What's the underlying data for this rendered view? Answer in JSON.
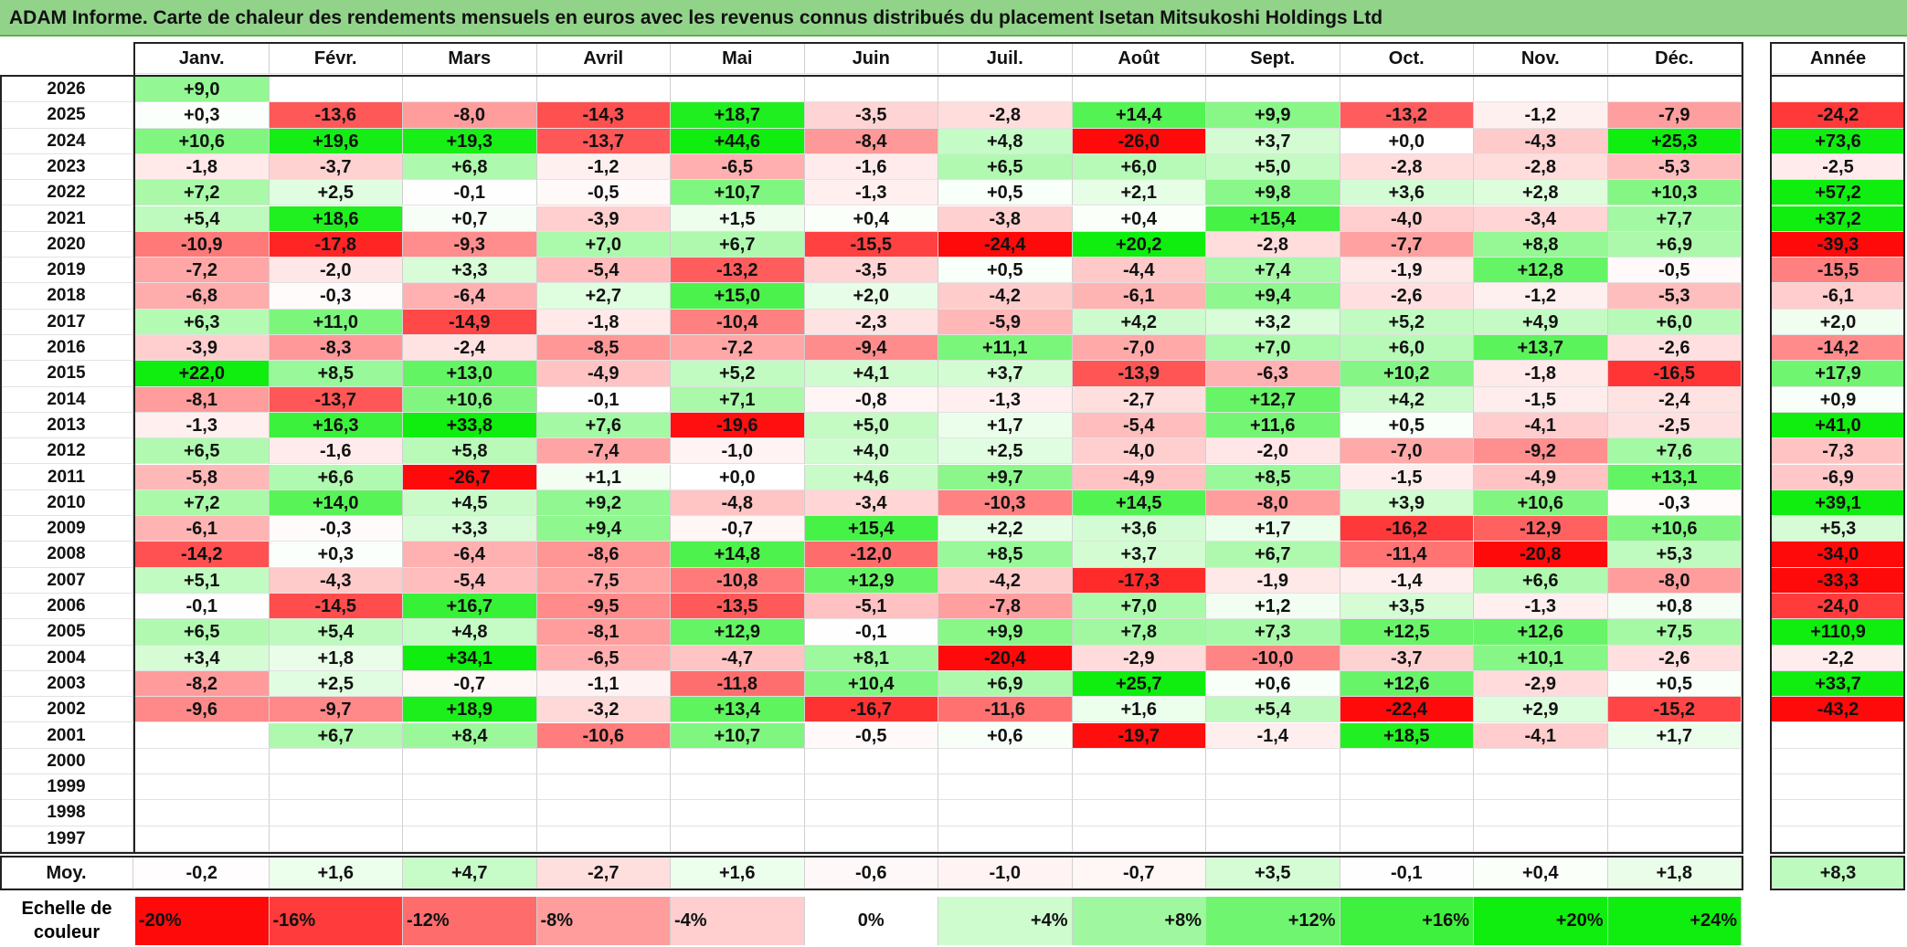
{
  "title": "ADAM Informe. Carte de chaleur des rendements mensuels en euros avec les revenus connus distribués du placement Isetan Mitsukoshi Holdings Ltd",
  "chart_data": {
    "type": "heatmap",
    "columns": [
      "Janv.",
      "Févr.",
      "Mars",
      "Avril",
      "Mai",
      "Juin",
      "Juil.",
      "Août",
      "Sept.",
      "Oct.",
      "Nov.",
      "Déc."
    ],
    "year_label": "Année",
    "avg_label": "Moy.",
    "rows": [
      {
        "year": "2026",
        "months": [
          "+9,0",
          "",
          "",
          "",
          "",
          "",
          "",
          "",
          "",
          "",
          "",
          ""
        ],
        "annual": ""
      },
      {
        "year": "2025",
        "months": [
          "+0,3",
          "-13,6",
          "-8,0",
          "-14,3",
          "+18,7",
          "-3,5",
          "-2,8",
          "+14,4",
          "+9,9",
          "-13,2",
          "-1,2",
          "-7,9"
        ],
        "annual": "-24,2"
      },
      {
        "year": "2024",
        "months": [
          "+10,6",
          "+19,6",
          "+19,3",
          "-13,7",
          "+44,6",
          "-8,4",
          "+4,8",
          "-26,0",
          "+3,7",
          "+0,0",
          "-4,3",
          "+25,3"
        ],
        "annual": "+73,6"
      },
      {
        "year": "2023",
        "months": [
          "-1,8",
          "-3,7",
          "+6,8",
          "-1,2",
          "-6,5",
          "-1,6",
          "+6,5",
          "+6,0",
          "+5,0",
          "-2,8",
          "-2,8",
          "-5,3"
        ],
        "annual": "-2,5"
      },
      {
        "year": "2022",
        "months": [
          "+7,2",
          "+2,5",
          "-0,1",
          "-0,5",
          "+10,7",
          "-1,3",
          "+0,5",
          "+2,1",
          "+9,8",
          "+3,6",
          "+2,8",
          "+10,3"
        ],
        "annual": "+57,2"
      },
      {
        "year": "2021",
        "months": [
          "+5,4",
          "+18,6",
          "+0,7",
          "-3,9",
          "+1,5",
          "+0,4",
          "-3,8",
          "+0,4",
          "+15,4",
          "-4,0",
          "-3,4",
          "+7,7"
        ],
        "annual": "+37,2"
      },
      {
        "year": "2020",
        "months": [
          "-10,9",
          "-17,8",
          "-9,3",
          "+7,0",
          "+6,7",
          "-15,5",
          "-24,4",
          "+20,2",
          "-2,8",
          "-7,7",
          "+8,8",
          "+6,9"
        ],
        "annual": "-39,3"
      },
      {
        "year": "2019",
        "months": [
          "-7,2",
          "-2,0",
          "+3,3",
          "-5,4",
          "-13,2",
          "-3,5",
          "+0,5",
          "-4,4",
          "+7,4",
          "-1,9",
          "+12,8",
          "-0,5"
        ],
        "annual": "-15,5"
      },
      {
        "year": "2018",
        "months": [
          "-6,8",
          "-0,3",
          "-6,4",
          "+2,7",
          "+15,0",
          "+2,0",
          "-4,2",
          "-6,1",
          "+9,4",
          "-2,6",
          "-1,2",
          "-5,3"
        ],
        "annual": "-6,1"
      },
      {
        "year": "2017",
        "months": [
          "+6,3",
          "+11,0",
          "-14,9",
          "-1,8",
          "-10,4",
          "-2,3",
          "-5,9",
          "+4,2",
          "+3,2",
          "+5,2",
          "+4,9",
          "+6,0"
        ],
        "annual": "+2,0"
      },
      {
        "year": "2016",
        "months": [
          "-3,9",
          "-8,3",
          "-2,4",
          "-8,5",
          "-7,2",
          "-9,4",
          "+11,1",
          "-7,0",
          "+7,0",
          "+6,0",
          "+13,7",
          "-2,6"
        ],
        "annual": "-14,2"
      },
      {
        "year": "2015",
        "months": [
          "+22,0",
          "+8,5",
          "+13,0",
          "-4,9",
          "+5,2",
          "+4,1",
          "+3,7",
          "-13,9",
          "-6,3",
          "+10,2",
          "-1,8",
          "-16,5"
        ],
        "annual": "+17,9"
      },
      {
        "year": "2014",
        "months": [
          "-8,1",
          "-13,7",
          "+10,6",
          "-0,1",
          "+7,1",
          "-0,8",
          "-1,3",
          "-2,7",
          "+12,7",
          "+4,2",
          "-1,5",
          "-2,4"
        ],
        "annual": "+0,9"
      },
      {
        "year": "2013",
        "months": [
          "-1,3",
          "+16,3",
          "+33,8",
          "+7,6",
          "-19,6",
          "+5,0",
          "+1,7",
          "-5,4",
          "+11,6",
          "+0,5",
          "-4,1",
          "-2,5"
        ],
        "annual": "+41,0"
      },
      {
        "year": "2012",
        "months": [
          "+6,5",
          "-1,6",
          "+5,8",
          "-7,4",
          "-1,0",
          "+4,0",
          "+2,5",
          "-4,0",
          "-2,0",
          "-7,0",
          "-9,2",
          "+7,6"
        ],
        "annual": "-7,3"
      },
      {
        "year": "2011",
        "months": [
          "-5,8",
          "+6,6",
          "-26,7",
          "+1,1",
          "+0,0",
          "+4,6",
          "+9,7",
          "-4,9",
          "+8,5",
          "-1,5",
          "-4,9",
          "+13,1"
        ],
        "annual": "-6,9"
      },
      {
        "year": "2010",
        "months": [
          "+7,2",
          "+14,0",
          "+4,5",
          "+9,2",
          "-4,8",
          "-3,4",
          "-10,3",
          "+14,5",
          "-8,0",
          "+3,9",
          "+10,6",
          "-0,3"
        ],
        "annual": "+39,1"
      },
      {
        "year": "2009",
        "months": [
          "-6,1",
          "-0,3",
          "+3,3",
          "+9,4",
          "-0,7",
          "+15,4",
          "+2,2",
          "+3,6",
          "+1,7",
          "-16,2",
          "-12,9",
          "+10,6"
        ],
        "annual": "+5,3"
      },
      {
        "year": "2008",
        "months": [
          "-14,2",
          "+0,3",
          "-6,4",
          "-8,6",
          "+14,8",
          "-12,0",
          "+8,5",
          "+3,7",
          "+6,7",
          "-11,4",
          "-20,8",
          "+5,3"
        ],
        "annual": "-34,0"
      },
      {
        "year": "2007",
        "months": [
          "+5,1",
          "-4,3",
          "-5,4",
          "-7,5",
          "-10,8",
          "+12,9",
          "-4,2",
          "-17,3",
          "-1,9",
          "-1,4",
          "+6,6",
          "-8,0"
        ],
        "annual": "-33,3"
      },
      {
        "year": "2006",
        "months": [
          "-0,1",
          "-14,5",
          "+16,7",
          "-9,5",
          "-13,5",
          "-5,1",
          "-7,8",
          "+7,0",
          "+1,2",
          "+3,5",
          "-1,3",
          "+0,8"
        ],
        "annual": "-24,0"
      },
      {
        "year": "2005",
        "months": [
          "+6,5",
          "+5,4",
          "+4,8",
          "-8,1",
          "+12,9",
          "-0,1",
          "+9,9",
          "+7,8",
          "+7,3",
          "+12,5",
          "+12,6",
          "+7,5"
        ],
        "annual": "+110,9"
      },
      {
        "year": "2004",
        "months": [
          "+3,4",
          "+1,8",
          "+34,1",
          "-6,5",
          "-4,7",
          "+8,1",
          "-20,4",
          "-2,9",
          "-10,0",
          "-3,7",
          "+10,1",
          "-2,6"
        ],
        "annual": "-2,2"
      },
      {
        "year": "2003",
        "months": [
          "-8,2",
          "+2,5",
          "-0,7",
          "-1,1",
          "-11,8",
          "+10,4",
          "+6,9",
          "+25,7",
          "+0,6",
          "+12,6",
          "-2,9",
          "+0,5"
        ],
        "annual": "+33,7"
      },
      {
        "year": "2002",
        "months": [
          "-9,6",
          "-9,7",
          "+18,9",
          "-3,2",
          "+13,4",
          "-16,7",
          "-11,6",
          "+1,6",
          "+5,4",
          "-22,4",
          "+2,9",
          "-15,2"
        ],
        "annual": "-43,2"
      },
      {
        "year": "2001",
        "months": [
          "",
          "+6,7",
          "+8,4",
          "-10,6",
          "+10,7",
          "-0,5",
          "+0,6",
          "-19,7",
          "-1,4",
          "+18,5",
          "-4,1",
          "+1,7"
        ],
        "annual": ""
      },
      {
        "year": "2000",
        "months": [
          "",
          "",
          "",
          "",
          "",
          "",
          "",
          "",
          "",
          "",
          "",
          ""
        ],
        "annual": ""
      },
      {
        "year": "1999",
        "months": [
          "",
          "",
          "",
          "",
          "",
          "",
          "",
          "",
          "",
          "",
          "",
          ""
        ],
        "annual": ""
      },
      {
        "year": "1998",
        "months": [
          "",
          "",
          "",
          "",
          "",
          "",
          "",
          "",
          "",
          "",
          "",
          ""
        ],
        "annual": ""
      },
      {
        "year": "1997",
        "months": [
          "",
          "",
          "",
          "",
          "",
          "",
          "",
          "",
          "",
          "",
          "",
          ""
        ],
        "annual": ""
      }
    ],
    "averages": {
      "months": [
        "-0,2",
        "+1,6",
        "+4,7",
        "-2,7",
        "+1,6",
        "-0,6",
        "-1,0",
        "-0,7",
        "+3,5",
        "-0,1",
        "+0,4",
        "+1,8"
      ],
      "annual": "+8,3"
    },
    "legend": {
      "label": "Echelle de couleur",
      "stops": [
        "-20%",
        "-16%",
        "-12%",
        "-8%",
        "-4%",
        "0%",
        "+4%",
        "+8%",
        "+12%",
        "+16%",
        "+20%",
        "+24%"
      ]
    },
    "colors": {
      "negative_max": "#ff0000",
      "neutral": "#ffffff",
      "positive_max": "#00ee00",
      "title_bg": "#92d38a"
    }
  }
}
